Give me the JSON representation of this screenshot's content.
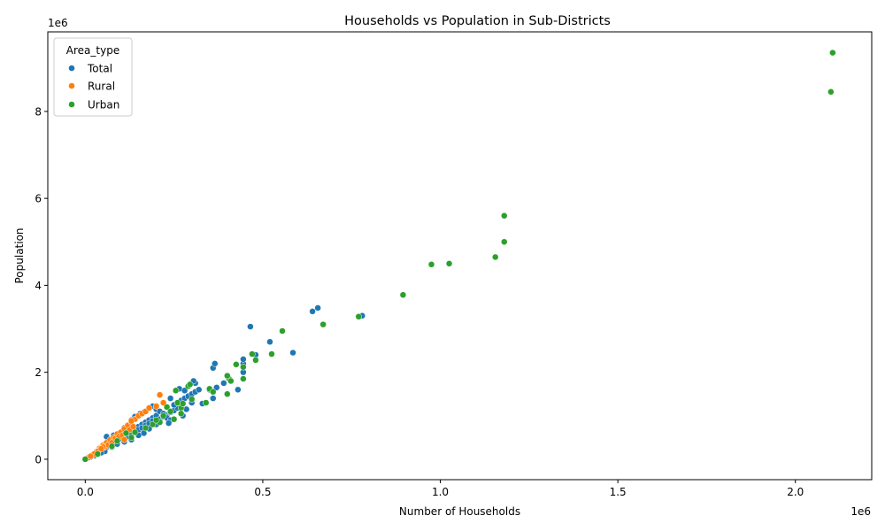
{
  "chart_data": {
    "type": "scatter",
    "title": "Households vs Population in Sub-Districts",
    "xlabel": "Number of Households",
    "ylabel": "Population",
    "x_offset_label": "1e6",
    "y_offset_label": "1e6",
    "xlim": [
      -0.1055,
      2.215
    ],
    "ylim": [
      -0.47,
      9.83
    ],
    "x_ticks": [
      0.0,
      0.5,
      1.0,
      1.5,
      2.0
    ],
    "x_tick_labels": [
      "0.0",
      "0.5",
      "1.0",
      "1.5",
      "2.0"
    ],
    "y_ticks": [
      0,
      2,
      4,
      6,
      8
    ],
    "y_tick_labels": [
      "0",
      "2",
      "4",
      "6",
      "8"
    ],
    "grid": false,
    "legend": {
      "title": "Area_type",
      "placement": "top-left",
      "entries": [
        "Total",
        "Rural",
        "Urban"
      ]
    },
    "colors": {
      "Total": "#1f77b4",
      "Rural": "#ff7f0e",
      "Urban": "#2ca02c"
    },
    "series": [
      {
        "name": "Total",
        "points": [
          [
            0.01,
            0.05
          ],
          [
            0.02,
            0.1
          ],
          [
            0.03,
            0.15
          ],
          [
            0.04,
            0.2
          ],
          [
            0.05,
            0.25
          ],
          [
            0.06,
            0.3
          ],
          [
            0.07,
            0.35
          ],
          [
            0.08,
            0.4
          ],
          [
            0.09,
            0.45
          ],
          [
            0.1,
            0.5
          ],
          [
            0.11,
            0.55
          ],
          [
            0.12,
            0.6
          ],
          [
            0.13,
            0.65
          ],
          [
            0.14,
            0.7
          ],
          [
            0.15,
            0.75
          ],
          [
            0.16,
            0.8
          ],
          [
            0.17,
            0.85
          ],
          [
            0.18,
            0.9
          ],
          [
            0.19,
            0.95
          ],
          [
            0.2,
            1.0
          ],
          [
            0.05,
            0.2
          ],
          [
            0.06,
            0.28
          ],
          [
            0.07,
            0.32
          ],
          [
            0.08,
            0.38
          ],
          [
            0.09,
            0.42
          ],
          [
            0.1,
            0.48
          ],
          [
            0.12,
            0.52
          ],
          [
            0.13,
            0.58
          ],
          [
            0.14,
            0.62
          ],
          [
            0.15,
            0.68
          ],
          [
            0.16,
            0.72
          ],
          [
            0.17,
            0.78
          ],
          [
            0.18,
            0.82
          ],
          [
            0.19,
            0.88
          ],
          [
            0.21,
            0.92
          ],
          [
            0.22,
            0.98
          ],
          [
            0.23,
            1.02
          ],
          [
            0.24,
            1.08
          ],
          [
            0.25,
            1.12
          ],
          [
            0.26,
            1.18
          ],
          [
            0.06,
            0.52
          ],
          [
            0.08,
            0.55
          ],
          [
            0.1,
            0.6
          ],
          [
            0.11,
            0.72
          ],
          [
            0.12,
            0.78
          ],
          [
            0.13,
            0.9
          ],
          [
            0.14,
            0.98
          ],
          [
            0.155,
            1.05
          ],
          [
            0.165,
            1.08
          ],
          [
            0.19,
            1.22
          ],
          [
            0.2,
            1.15
          ],
          [
            0.21,
            1.1
          ],
          [
            0.22,
            1.05
          ],
          [
            0.23,
            0.95
          ],
          [
            0.24,
            0.9
          ],
          [
            0.235,
            0.83
          ],
          [
            0.2,
            0.8
          ],
          [
            0.18,
            0.7
          ],
          [
            0.165,
            0.6
          ],
          [
            0.15,
            0.55
          ],
          [
            0.13,
            0.45
          ],
          [
            0.11,
            0.4
          ],
          [
            0.09,
            0.35
          ],
          [
            0.075,
            0.28
          ],
          [
            0.055,
            0.18
          ],
          [
            0.045,
            0.15
          ],
          [
            0.035,
            0.12
          ],
          [
            0.025,
            0.08
          ],
          [
            0.015,
            0.05
          ],
          [
            0.005,
            0.02
          ],
          [
            0.25,
            1.25
          ],
          [
            0.26,
            1.3
          ],
          [
            0.27,
            1.35
          ],
          [
            0.28,
            1.4
          ],
          [
            0.29,
            1.45
          ],
          [
            0.3,
            1.5
          ],
          [
            0.31,
            1.55
          ],
          [
            0.32,
            1.6
          ],
          [
            0.33,
            1.28
          ],
          [
            0.285,
            1.15
          ],
          [
            0.275,
            1.0
          ],
          [
            0.24,
            1.4
          ],
          [
            0.265,
            1.62
          ],
          [
            0.28,
            1.58
          ],
          [
            0.3,
            1.3
          ],
          [
            0.31,
            1.75
          ],
          [
            0.305,
            1.8
          ],
          [
            0.35,
            1.6
          ],
          [
            0.36,
            1.4
          ],
          [
            0.37,
            1.65
          ],
          [
            0.36,
            2.1
          ],
          [
            0.365,
            2.2
          ],
          [
            0.39,
            1.75
          ],
          [
            0.43,
            1.6
          ],
          [
            0.445,
            2.0
          ],
          [
            0.445,
            2.2
          ],
          [
            0.445,
            2.3
          ],
          [
            0.465,
            3.05
          ],
          [
            0.48,
            2.4
          ],
          [
            0.52,
            2.7
          ],
          [
            0.585,
            2.45
          ],
          [
            0.64,
            3.4
          ],
          [
            0.655,
            3.48
          ],
          [
            0.78,
            3.3
          ]
        ]
      },
      {
        "name": "Rural",
        "points": [
          [
            0.01,
            0.04
          ],
          [
            0.02,
            0.09
          ],
          [
            0.03,
            0.16
          ],
          [
            0.04,
            0.25
          ],
          [
            0.05,
            0.32
          ],
          [
            0.06,
            0.38
          ],
          [
            0.07,
            0.45
          ],
          [
            0.08,
            0.5
          ],
          [
            0.09,
            0.58
          ],
          [
            0.1,
            0.62
          ],
          [
            0.11,
            0.7
          ],
          [
            0.12,
            0.78
          ],
          [
            0.13,
            0.85
          ],
          [
            0.14,
            0.92
          ],
          [
            0.15,
            1.0
          ],
          [
            0.16,
            1.05
          ],
          [
            0.17,
            1.1
          ],
          [
            0.18,
            1.18
          ],
          [
            0.2,
            1.22
          ],
          [
            0.21,
            1.48
          ],
          [
            0.22,
            1.3
          ],
          [
            0.055,
            0.28
          ],
          [
            0.065,
            0.33
          ],
          [
            0.075,
            0.38
          ],
          [
            0.085,
            0.48
          ],
          [
            0.095,
            0.52
          ],
          [
            0.105,
            0.55
          ],
          [
            0.115,
            0.6
          ],
          [
            0.125,
            0.68
          ],
          [
            0.135,
            0.75
          ],
          [
            0.11,
            0.45
          ],
          [
            0.13,
            0.88
          ],
          [
            0.04,
            0.22
          ],
          [
            0.05,
            0.28
          ],
          [
            0.035,
            0.18
          ],
          [
            0.045,
            0.24
          ],
          [
            0.025,
            0.12
          ],
          [
            0.015,
            0.07
          ]
        ]
      },
      {
        "name": "Urban",
        "points": [
          [
            0.0,
            0.0
          ],
          [
            0.035,
            0.12
          ],
          [
            0.075,
            0.3
          ],
          [
            0.13,
            0.5
          ],
          [
            0.14,
            0.62
          ],
          [
            0.17,
            0.72
          ],
          [
            0.19,
            0.8
          ],
          [
            0.21,
            0.85
          ],
          [
            0.23,
            1.2
          ],
          [
            0.25,
            0.92
          ],
          [
            0.255,
            1.58
          ],
          [
            0.26,
            1.3
          ],
          [
            0.27,
            1.18
          ],
          [
            0.275,
            1.28
          ],
          [
            0.29,
            1.68
          ],
          [
            0.295,
            1.72
          ],
          [
            0.3,
            1.38
          ],
          [
            0.34,
            1.3
          ],
          [
            0.35,
            1.62
          ],
          [
            0.36,
            1.55
          ],
          [
            0.4,
            1.5
          ],
          [
            0.405,
            1.85
          ],
          [
            0.41,
            1.8
          ],
          [
            0.4,
            1.92
          ],
          [
            0.425,
            2.18
          ],
          [
            0.445,
            1.85
          ],
          [
            0.445,
            2.12
          ],
          [
            0.47,
            2.42
          ],
          [
            0.48,
            2.28
          ],
          [
            0.525,
            2.42
          ],
          [
            0.555,
            2.95
          ],
          [
            0.67,
            3.1
          ],
          [
            0.77,
            3.28
          ],
          [
            0.895,
            3.78
          ],
          [
            0.975,
            4.48
          ],
          [
            1.025,
            4.5
          ],
          [
            1.155,
            4.65
          ],
          [
            1.18,
            5.0
          ],
          [
            1.18,
            5.6
          ],
          [
            2.1,
            8.45
          ],
          [
            2.105,
            9.35
          ],
          [
            0.09,
            0.42
          ],
          [
            0.115,
            0.6
          ],
          [
            0.2,
            0.9
          ],
          [
            0.22,
            1.0
          ],
          [
            0.24,
            1.1
          ],
          [
            0.27,
            1.05
          ]
        ]
      }
    ]
  }
}
